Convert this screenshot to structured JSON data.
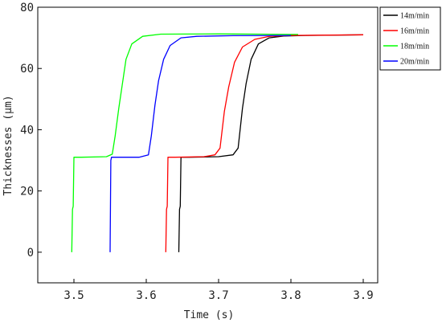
{
  "chart_data": {
    "type": "line",
    "title": "",
    "xlabel": "Time (s)",
    "ylabel": "Thicknesses (μm)",
    "xlim": [
      3.45,
      3.92
    ],
    "ylim": [
      -10,
      80
    ],
    "xticks": [
      3.5,
      3.6,
      3.7,
      3.8,
      3.9
    ],
    "xtick_labels": [
      "3.5",
      "3.6",
      "3.7",
      "3.8",
      "3.9"
    ],
    "yticks": [
      0,
      20,
      40,
      60,
      80
    ],
    "ytick_labels": [
      "0",
      "20",
      "40",
      "60",
      "80"
    ],
    "grid": false,
    "legend_position": "top-right",
    "series": [
      {
        "name": "14m/min",
        "color": "#000000",
        "points": [
          [
            3.645,
            0
          ],
          [
            3.646,
            14
          ],
          [
            3.647,
            15
          ],
          [
            3.648,
            31
          ],
          [
            3.66,
            31
          ],
          [
            3.7,
            31.2
          ],
          [
            3.72,
            31.8
          ],
          [
            3.727,
            34
          ],
          [
            3.733,
            47
          ],
          [
            3.738,
            55
          ],
          [
            3.745,
            63
          ],
          [
            3.755,
            68
          ],
          [
            3.77,
            70
          ],
          [
            3.79,
            70.6
          ],
          [
            3.82,
            70.8
          ],
          [
            3.9,
            71
          ]
        ]
      },
      {
        "name": "16m/min",
        "color": "#ff0000",
        "points": [
          [
            3.627,
            0
          ],
          [
            3.628,
            14
          ],
          [
            3.629,
            15
          ],
          [
            3.63,
            31
          ],
          [
            3.64,
            31
          ],
          [
            3.68,
            31.2
          ],
          [
            3.695,
            31.8
          ],
          [
            3.702,
            34
          ],
          [
            3.708,
            46
          ],
          [
            3.714,
            54
          ],
          [
            3.722,
            62
          ],
          [
            3.733,
            67
          ],
          [
            3.75,
            69.5
          ],
          [
            3.77,
            70.5
          ],
          [
            3.8,
            70.8
          ],
          [
            3.9,
            71
          ]
        ]
      },
      {
        "name": "18m/min",
        "color": "#00ff00",
        "points": [
          [
            3.497,
            0
          ],
          [
            3.498,
            14
          ],
          [
            3.499,
            15
          ],
          [
            3.5,
            31
          ],
          [
            3.51,
            31
          ],
          [
            3.545,
            31.2
          ],
          [
            3.553,
            32
          ],
          [
            3.557,
            38
          ],
          [
            3.562,
            47
          ],
          [
            3.567,
            55
          ],
          [
            3.572,
            63
          ],
          [
            3.58,
            68
          ],
          [
            3.595,
            70.5
          ],
          [
            3.62,
            71.2
          ],
          [
            3.7,
            71.3
          ],
          [
            3.81,
            71.1
          ]
        ]
      },
      {
        "name": "20m/min",
        "color": "#0000ff",
        "points": [
          [
            3.55,
            0
          ],
          [
            3.551,
            30
          ],
          [
            3.552,
            31
          ],
          [
            3.56,
            31
          ],
          [
            3.59,
            31
          ],
          [
            3.603,
            31.8
          ],
          [
            3.607,
            38
          ],
          [
            3.612,
            48
          ],
          [
            3.617,
            56
          ],
          [
            3.624,
            63
          ],
          [
            3.633,
            67.5
          ],
          [
            3.648,
            70
          ],
          [
            3.67,
            70.5
          ],
          [
            3.72,
            70.7
          ],
          [
            3.8,
            70.8
          ]
        ]
      }
    ]
  }
}
